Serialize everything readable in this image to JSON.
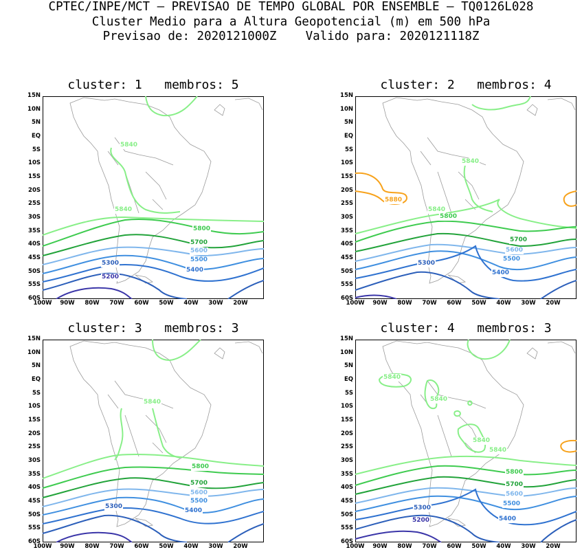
{
  "header": {
    "line1": "CPTEC/INPE/MCT — PREVISAO DE TEMPO GLOBAL POR ENSEMBLE — TQ0126L028",
    "line2": "Cluster Medio para a Altura Geopotencial (m) em 500 hPa",
    "line3": "Previsao de: 2020121000Z    Valido para: 2020121118Z"
  },
  "lat_labels": [
    "15N",
    "10N",
    "5N",
    "EQ",
    "5S",
    "10S",
    "15S",
    "20S",
    "25S",
    "30S",
    "35S",
    "40S",
    "45S",
    "50S",
    "55S",
    "60S"
  ],
  "lon_labels": [
    "100W",
    "90W",
    "80W",
    "70W",
    "60W",
    "50W",
    "40W",
    "30W",
    "20W"
  ],
  "colors": {
    "c5200": "#3a35a8",
    "c5300": "#2c5fba",
    "c5400": "#2f72d0",
    "c5500": "#3f8fe0",
    "c5600": "#7fb6ec",
    "c5700": "#22a33a",
    "c5800": "#3ecb4f",
    "c5840": "#88ef88",
    "c5880": "#f7a21b",
    "land": "#9a9a9a"
  },
  "panels": [
    {
      "title": "cluster: 1   membros: 5",
      "labels": {
        "l5840a": "5840",
        "l5840b": "5840",
        "l5800": "5800",
        "l5700": "5700",
        "l5600": "5600",
        "l5500": "5500",
        "l5400": "5400",
        "l5300": "5300",
        "l5200": "5200"
      }
    },
    {
      "title": "cluster: 2   membros: 4",
      "labels": {
        "l5880": "5880",
        "l5840a": "5840",
        "l5840b": "5840",
        "l5800": "5800",
        "l5700": "5700",
        "l5600": "5600",
        "l5500": "5500",
        "l5400": "5400",
        "l5300": "5300"
      }
    },
    {
      "title": "cluster: 3   membros: 3",
      "labels": {
        "l5840a": "5840",
        "l5800": "5800",
        "l5700": "5700",
        "l5600": "5600",
        "l5500": "5500",
        "l5400": "5400",
        "l5300": "5300"
      }
    },
    {
      "title": "cluster: 4   membros: 3",
      "labels": {
        "l5840a": "5840",
        "l5840b": "5840",
        "l5840c": "5840",
        "l5840d": "5840",
        "l5800": "5800",
        "l5700": "5700",
        "l5600": "5600",
        "l5500": "5500",
        "l5400": "5400",
        "l5300": "5300",
        "l5200": "5200"
      }
    }
  ]
}
